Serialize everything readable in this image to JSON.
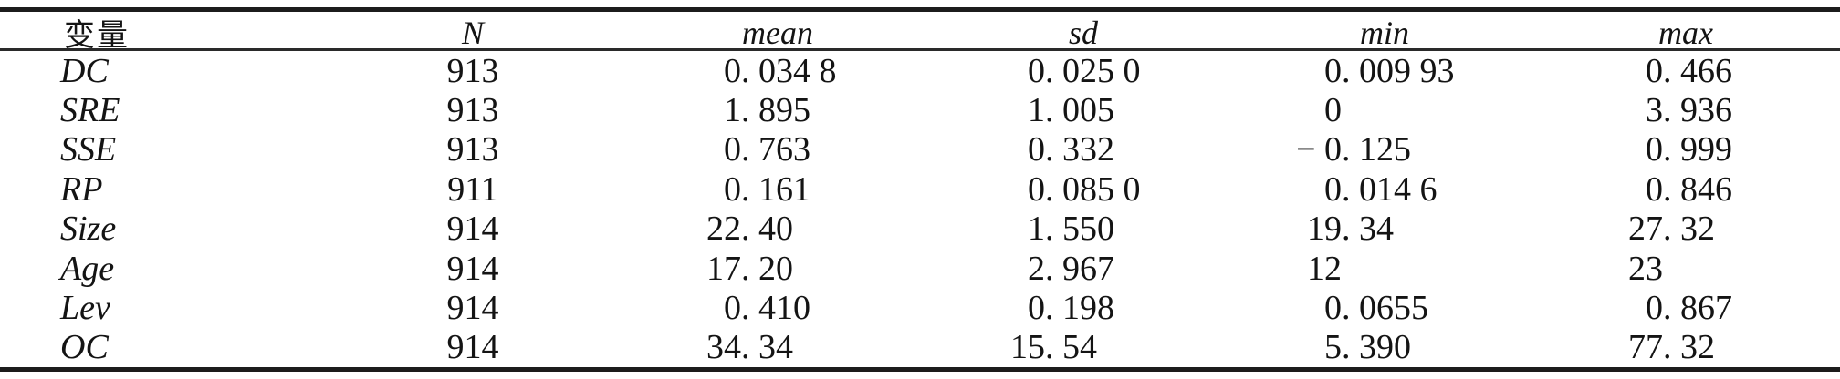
{
  "page": {
    "background_color": "#ffffff",
    "text_color": "#141414",
    "rule_color": "#1c1c1c"
  },
  "table": {
    "type": "table",
    "columns": {
      "variable": "变量",
      "n": "N",
      "mean": "mean",
      "sd": "sd",
      "min": "min",
      "max": "max"
    },
    "rows": [
      {
        "var": "DC",
        "n": "913",
        "mean": "0. 034 8",
        "sd": "0. 025 0",
        "min": "0. 009 93",
        "max": "0. 466"
      },
      {
        "var": "SRE",
        "n": "913",
        "mean": "1. 895",
        "sd": "1. 005",
        "min": "0",
        "max": "3. 936"
      },
      {
        "var": "SSE",
        "n": "913",
        "mean": "0. 763",
        "sd": "0. 332",
        "min": "− 0. 125",
        "max": "0. 999"
      },
      {
        "var": "RP",
        "n": "911",
        "mean": "0. 161",
        "sd": "0. 085 0",
        "min": "0. 014 6",
        "max": "0. 846"
      },
      {
        "var": "Size",
        "n": "914",
        "mean": "22. 40",
        "sd": "1. 550",
        "min": "19. 34",
        "max": "27. 32"
      },
      {
        "var": "Age",
        "n": "914",
        "mean": "17. 20",
        "sd": "2. 967",
        "min": "12",
        "max": "23"
      },
      {
        "var": "Lev",
        "n": "914",
        "mean": "0. 410",
        "sd": "0. 198",
        "min": "0. 0655",
        "max": "0. 867"
      },
      {
        "var": "OC",
        "n": "914",
        "mean": "34. 34",
        "sd": "15. 54",
        "min": "5. 390",
        "max": "77. 32"
      }
    ]
  }
}
